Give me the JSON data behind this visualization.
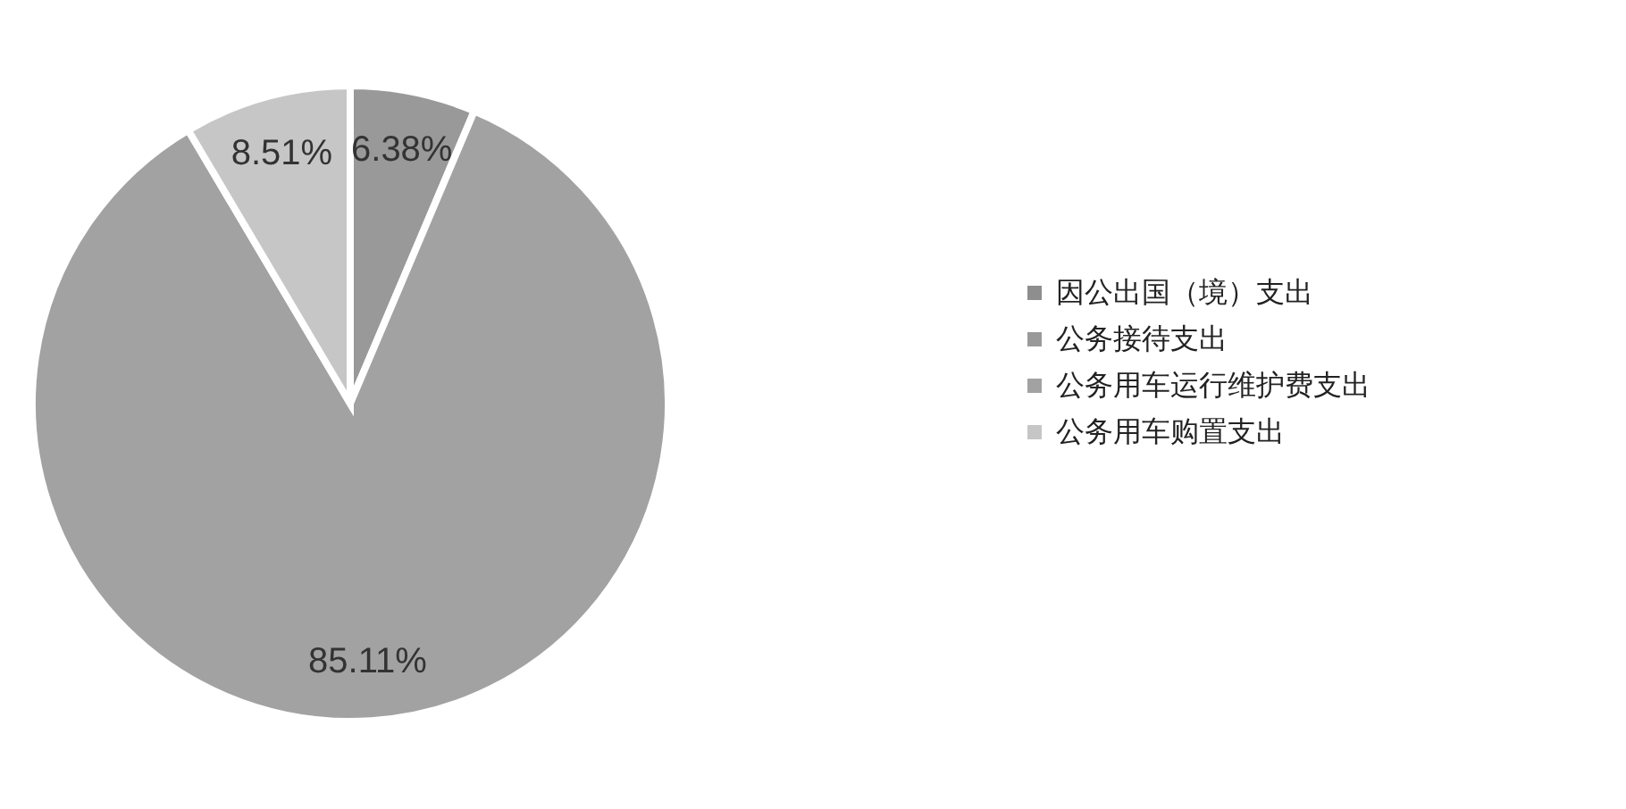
{
  "chart_data": {
    "type": "pie",
    "categories": [
      "因公出国（境）支出",
      "公务接待支出",
      "公务用车运行维护费支出",
      "公务用车购置支出"
    ],
    "values": [
      0,
      6.38,
      85.11,
      8.51
    ],
    "value_labels": [
      null,
      "6.38%",
      "85.11%",
      "8.51%"
    ],
    "colors": [
      "#8e8e8e",
      "#999999",
      "#a2a2a2",
      "#c6c6c6"
    ],
    "legend": "right"
  }
}
